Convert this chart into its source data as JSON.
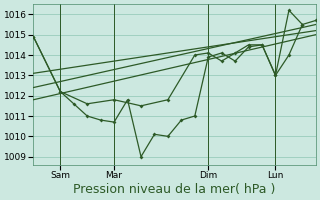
{
  "bg_color": "#cce8e0",
  "grid_color": "#99ccbb",
  "line_color": "#2d5a27",
  "ylim": [
    1008.6,
    1016.5
  ],
  "yticks": [
    1009,
    1010,
    1011,
    1012,
    1013,
    1014,
    1015,
    1016
  ],
  "xlabel": "Pression niveau de la mer( hPa )",
  "xlabel_fontsize": 9,
  "tick_fontsize": 6.5,
  "x_tick_labels": [
    "Sam",
    "Mar",
    "Dim",
    "Lun"
  ],
  "x_tick_positions": [
    2,
    6,
    13,
    18
  ],
  "xlim": [
    0,
    21
  ],
  "vline_positions": [
    2,
    6,
    13,
    18
  ],
  "line_a_x": [
    0,
    2,
    3,
    4,
    5,
    6,
    7,
    8,
    9,
    10,
    11,
    12,
    13,
    14,
    15,
    16,
    17,
    18,
    19,
    20,
    21
  ],
  "line_a_y": [
    1014.9,
    1012.2,
    1011.6,
    1011.0,
    1010.8,
    1010.7,
    1011.8,
    1009.0,
    1010.1,
    1010.0,
    1010.8,
    1011.0,
    1013.9,
    1014.1,
    1013.7,
    1014.4,
    1014.5,
    1013.0,
    1016.2,
    1015.5,
    1015.7
  ],
  "line_b_x": [
    0,
    2,
    4,
    6,
    8,
    10,
    12,
    13,
    14,
    15,
    16,
    17,
    18,
    19,
    20
  ],
  "line_b_y": [
    1014.9,
    1012.2,
    1011.6,
    1011.8,
    1011.5,
    1011.8,
    1014.0,
    1014.1,
    1013.7,
    1014.1,
    1014.5,
    1014.5,
    1013.0,
    1014.0,
    1015.5
  ],
  "trend1_x": [
    0,
    21
  ],
  "trend1_y": [
    1012.4,
    1015.5
  ],
  "trend2_x": [
    0,
    21
  ],
  "trend2_y": [
    1011.8,
    1015.0
  ],
  "trend3_x": [
    0,
    21
  ],
  "trend3_y": [
    1013.1,
    1015.2
  ]
}
